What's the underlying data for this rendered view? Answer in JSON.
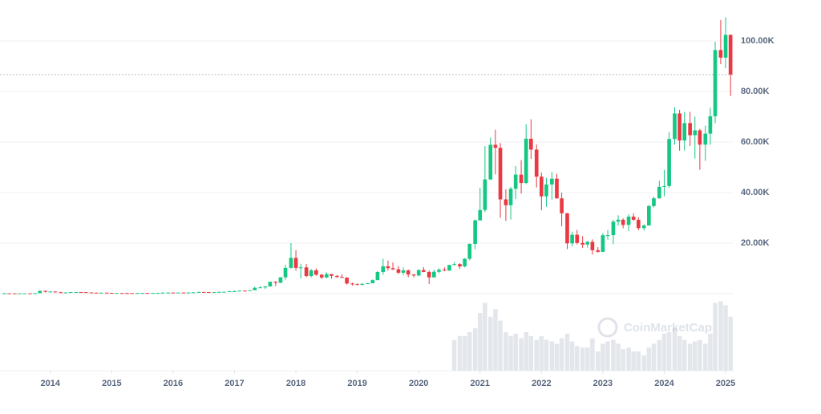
{
  "chart_data": {
    "type": "candlestick",
    "watermark": "CoinMarketCap",
    "up_color": "#16c784",
    "down_color": "#ea3943",
    "volume_color": "#e3e6eb",
    "grid": true,
    "xlim": [
      2013.18,
      2025.13
    ],
    "xticks": [
      2014,
      2015,
      2016,
      2017,
      2018,
      2019,
      2020,
      2021,
      2022,
      2023,
      2024,
      2025
    ],
    "ylim": [
      0,
      116190
    ],
    "yticks": [
      {
        "value": 20000,
        "label": "20.00K"
      },
      {
        "value": 40000,
        "label": "40.00K"
      },
      {
        "value": 60000,
        "label": "60.00K"
      },
      {
        "value": 80000,
        "label": "80.00K"
      },
      {
        "value": 100000,
        "label": "100.00K"
      }
    ],
    "last_price": 86700,
    "volume_ylim": [
      0,
      100
    ],
    "x": [
      2013.25,
      2013.33,
      2013.42,
      2013.5,
      2013.58,
      2013.67,
      2013.75,
      2013.83,
      2013.92,
      2014,
      2014.08,
      2014.17,
      2014.25,
      2014.33,
      2014.42,
      2014.5,
      2014.58,
      2014.67,
      2014.75,
      2014.83,
      2014.92,
      2015,
      2015.08,
      2015.17,
      2015.25,
      2015.33,
      2015.42,
      2015.5,
      2015.58,
      2015.67,
      2015.75,
      2015.83,
      2015.92,
      2016,
      2016.08,
      2016.17,
      2016.25,
      2016.33,
      2016.42,
      2016.5,
      2016.58,
      2016.67,
      2016.75,
      2016.83,
      2016.92,
      2017,
      2017.08,
      2017.17,
      2017.25,
      2017.33,
      2017.42,
      2017.5,
      2017.58,
      2017.67,
      2017.75,
      2017.83,
      2017.92,
      2018,
      2018.08,
      2018.17,
      2018.25,
      2018.33,
      2018.42,
      2018.5,
      2018.58,
      2018.67,
      2018.75,
      2018.83,
      2018.92,
      2019,
      2019.08,
      2019.17,
      2019.25,
      2019.33,
      2019.42,
      2019.5,
      2019.58,
      2019.67,
      2019.75,
      2019.83,
      2019.92,
      2020,
      2020.08,
      2020.17,
      2020.25,
      2020.33,
      2020.42,
      2020.5,
      2020.58,
      2020.67,
      2020.75,
      2020.83,
      2020.92,
      2021,
      2021.08,
      2021.17,
      2021.25,
      2021.33,
      2021.42,
      2021.5,
      2021.58,
      2021.67,
      2021.75,
      2021.83,
      2021.92,
      2022,
      2022.08,
      2022.17,
      2022.25,
      2022.33,
      2022.42,
      2022.5,
      2022.58,
      2022.67,
      2022.75,
      2022.83,
      2022.92,
      2023,
      2023.08,
      2023.17,
      2023.25,
      2023.33,
      2023.42,
      2023.5,
      2023.58,
      2023.67,
      2023.75,
      2023.83,
      2023.92,
      2024,
      2024.08,
      2024.17,
      2024.25,
      2024.33,
      2024.42,
      2024.5,
      2024.58,
      2024.67,
      2024.75,
      2024.83,
      2024.92,
      2025,
      2025.08
    ],
    "open": [
      93,
      139,
      129,
      97,
      106,
      135,
      133,
      198,
      1130,
      750,
      830,
      550,
      450,
      450,
      630,
      640,
      590,
      480,
      390,
      340,
      380,
      320,
      220,
      250,
      245,
      235,
      230,
      265,
      285,
      230,
      235,
      315,
      380,
      430,
      370,
      435,
      415,
      450,
      530,
      670,
      625,
      575,
      610,
      700,
      745,
      960,
      970,
      1190,
      1080,
      1350,
      2300,
      2480,
      2870,
      4700,
      4340,
      6470,
      10200,
      14150,
      10200,
      10400,
      6970,
      9240,
      7490,
      6400,
      7730,
      7030,
      6630,
      6320,
      4020,
      3740,
      3460,
      3850,
      4100,
      5350,
      8570,
      10820,
      10090,
      9630,
      8290,
      9200,
      7570,
      7190,
      9350,
      8600,
      6440,
      8660,
      9460,
      9140,
      11350,
      11680,
      10780,
      13800,
      19700,
      29000,
      33100,
      45200,
      58900,
      57700,
      37300,
      35000,
      41500,
      47100,
      43800,
      61300,
      57000,
      46300,
      38500,
      43200,
      45500,
      37700,
      31800,
      19900,
      23300,
      20050,
      19430,
      20500,
      17170,
      16550,
      23100,
      23150,
      28500,
      29250,
      27200,
      30480,
      29230,
      25940,
      26970,
      34670,
      37720,
      42270,
      42580,
      61200,
      71300,
      60600,
      67500,
      62700,
      64600,
      58970,
      63300,
      70200,
      96400,
      93400,
      102400
    ],
    "high": [
      266,
      140,
      130,
      112,
      140,
      140,
      215,
      1240,
      1160,
      1020,
      860,
      700,
      550,
      630,
      680,
      650,
      600,
      490,
      410,
      450,
      390,
      320,
      260,
      300,
      260,
      250,
      270,
      315,
      285,
      245,
      330,
      500,
      470,
      460,
      440,
      440,
      470,
      550,
      780,
      700,
      610,
      620,
      730,
      760,
      980,
      1200,
      1210,
      1300,
      1380,
      2760,
      2990,
      2940,
      4740,
      4980,
      6500,
      11400,
      20000,
      17200,
      11800,
      11700,
      9750,
      9980,
      7760,
      8490,
      7740,
      7410,
      7680,
      6560,
      4310,
      4110,
      4200,
      4300,
      5640,
      9010,
      13800,
      13130,
      12330,
      10920,
      10370,
      9530,
      7750,
      9580,
      10500,
      9190,
      9460,
      10070,
      10380,
      11440,
      12470,
      12030,
      14040,
      19860,
      29300,
      41950,
      58350,
      61790,
      64860,
      59590,
      41300,
      42240,
      50480,
      52850,
      67000,
      69000,
      59000,
      47880,
      45820,
      48190,
      47400,
      39900,
      31950,
      24570,
      25210,
      22760,
      20980,
      21480,
      18390,
      23920,
      25210,
      29160,
      31000,
      29820,
      31390,
      31800,
      30200,
      27450,
      35170,
      38420,
      44700,
      48960,
      63900,
      73750,
      72750,
      71950,
      71960,
      70020,
      65120,
      66480,
      73580,
      99650,
      108270,
      109350,
      102500
    ],
    "low": [
      65,
      80,
      65,
      65,
      95,
      115,
      115,
      180,
      450,
      740,
      410,
      420,
      340,
      420,
      550,
      560,
      420,
      370,
      280,
      310,
      310,
      160,
      220,
      230,
      210,
      225,
      220,
      250,
      200,
      225,
      235,
      305,
      340,
      350,
      370,
      400,
      410,
      440,
      530,
      560,
      550,
      590,
      600,
      700,
      740,
      750,
      930,
      890,
      1060,
      1350,
      2200,
      1840,
      2730,
      2950,
      4110,
      5500,
      9900,
      9100,
      6000,
      6500,
      6450,
      7050,
      5760,
      6080,
      5880,
      6120,
      6180,
      3590,
      3200,
      3390,
      3390,
      3860,
      4100,
      5350,
      7500,
      9070,
      9300,
      7740,
      7400,
      6540,
      6430,
      6900,
      8460,
      3800,
      6550,
      8100,
      8900,
      9050,
      11080,
      9880,
      10390,
      13210,
      17570,
      28900,
      32300,
      44960,
      47200,
      30000,
      28800,
      29300,
      37400,
      39600,
      43300,
      53300,
      42000,
      33000,
      34320,
      37200,
      37600,
      26700,
      17600,
      18800,
      19520,
      18150,
      18190,
      15480,
      16260,
      16500,
      21350,
      19570,
      26940,
      25880,
      24800,
      28900,
      25130,
      24900,
      26950,
      34100,
      37600,
      38500,
      41880,
      59000,
      56550,
      56600,
      58400,
      53500,
      49000,
      52550,
      58900,
      67440,
      90800,
      89200,
      78200
    ],
    "close": [
      139,
      129,
      97,
      106,
      135,
      133,
      198,
      1130,
      750,
      830,
      550,
      450,
      450,
      630,
      640,
      590,
      480,
      390,
      340,
      380,
      320,
      220,
      250,
      245,
      235,
      230,
      265,
      285,
      230,
      235,
      315,
      380,
      430,
      370,
      435,
      415,
      450,
      530,
      670,
      625,
      575,
      610,
      700,
      745,
      960,
      970,
      1190,
      1080,
      1350,
      2300,
      2480,
      2870,
      4700,
      4340,
      6470,
      10200,
      14150,
      10200,
      10400,
      6970,
      9240,
      7490,
      6400,
      7730,
      7030,
      6630,
      6320,
      4020,
      3740,
      3460,
      3850,
      4100,
      5350,
      8570,
      10820,
      10090,
      9630,
      8290,
      9200,
      7570,
      7190,
      9350,
      8600,
      6440,
      8660,
      9460,
      9140,
      11350,
      11680,
      10780,
      13800,
      19700,
      29000,
      33100,
      45200,
      58900,
      57700,
      37300,
      35000,
      41500,
      47100,
      43800,
      61300,
      57000,
      46300,
      38500,
      43200,
      45500,
      37700,
      31800,
      19900,
      23300,
      20050,
      19430,
      20500,
      17170,
      16550,
      23100,
      23150,
      28500,
      29250,
      27200,
      30480,
      29230,
      25940,
      26970,
      34670,
      37720,
      42270,
      42580,
      61200,
      71300,
      60600,
      67500,
      62700,
      64600,
      58970,
      63300,
      70200,
      96400,
      93400,
      102400,
      86700
    ],
    "volume": [
      null,
      null,
      null,
      null,
      null,
      null,
      null,
      null,
      null,
      null,
      null,
      null,
      null,
      null,
      null,
      null,
      null,
      null,
      null,
      null,
      null,
      null,
      null,
      null,
      null,
      null,
      null,
      null,
      null,
      null,
      null,
      null,
      null,
      null,
      null,
      null,
      null,
      null,
      null,
      null,
      null,
      null,
      null,
      null,
      null,
      null,
      null,
      null,
      null,
      null,
      null,
      null,
      null,
      null,
      null,
      null,
      null,
      null,
      null,
      null,
      null,
      null,
      null,
      null,
      null,
      null,
      null,
      null,
      null,
      null,
      null,
      null,
      null,
      null,
      null,
      null,
      null,
      null,
      null,
      null,
      null,
      null,
      null,
      null,
      null,
      null,
      null,
      null,
      40,
      45,
      45,
      50,
      55,
      75,
      88,
      70,
      80,
      65,
      50,
      45,
      48,
      42,
      50,
      45,
      40,
      45,
      40,
      38,
      35,
      42,
      48,
      38,
      32,
      30,
      30,
      42,
      25,
      35,
      38,
      40,
      35,
      28,
      30,
      25,
      25,
      20,
      30,
      35,
      40,
      48,
      50,
      55,
      45,
      40,
      35,
      38,
      40,
      35,
      48,
      88,
      90,
      85,
      70
    ]
  }
}
